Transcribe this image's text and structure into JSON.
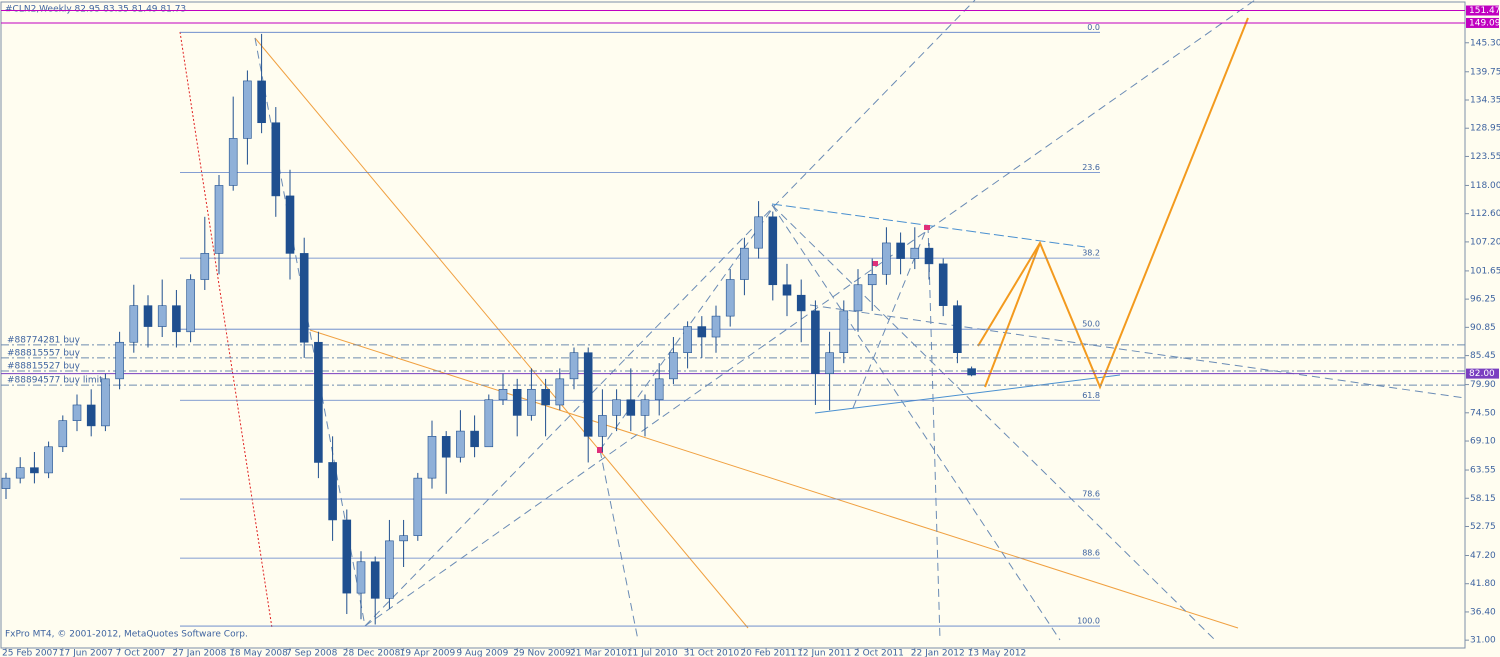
{
  "chart_data": {
    "type": "candlestick",
    "header": "#CLN2,Weekly  82.95 83.35 81.49 81.73",
    "copyright": "FxPro MT4, © 2001-2012, MetaQuotes Software Corp.",
    "categories": [
      "25 Feb 2007",
      null,
      null,
      null,
      "17 Jun 2007",
      null,
      null,
      null,
      "7 Oct 2007",
      null,
      null,
      null,
      "27 Jan 2008",
      null,
      null,
      null,
      "18 May 2008",
      null,
      null,
      null,
      "7 Sep 2008",
      null,
      null,
      null,
      "28 Dec 2008",
      null,
      null,
      null,
      "19 Apr 2009",
      null,
      null,
      null,
      "9 Aug 2009",
      null,
      null,
      null,
      "29 Nov 2009",
      null,
      null,
      null,
      "21 Mar 2010",
      null,
      null,
      null,
      "11 Jul 2010",
      null,
      null,
      null,
      "31 Oct 2010",
      null,
      null,
      null,
      "20 Feb 2011",
      null,
      null,
      null,
      "12 Jun 2011",
      null,
      null,
      null,
      "2 Oct 2011",
      null,
      null,
      null,
      "22 Jan 2012",
      null,
      null,
      null,
      "13 May 2012"
    ],
    "open": [
      60,
      62,
      64,
      63,
      68,
      73,
      76,
      72,
      81,
      88,
      95,
      91,
      95,
      90,
      100,
      105,
      118,
      127,
      138,
      130,
      116,
      105,
      88,
      65,
      54,
      40,
      46,
      39,
      50,
      51,
      62,
      70,
      66,
      71,
      68,
      77,
      79,
      74,
      79,
      76,
      81,
      86,
      70,
      74,
      77,
      74,
      77,
      81,
      86,
      91,
      89,
      93,
      100,
      106,
      112,
      99,
      97,
      94,
      82,
      86,
      94,
      99,
      101,
      107,
      104,
      106,
      103,
      95,
      82.95
    ],
    "high": [
      63,
      66,
      67,
      69,
      74,
      78,
      79,
      82,
      90,
      99,
      97,
      100,
      98,
      101,
      112,
      120,
      135,
      140,
      147,
      133,
      121,
      108,
      90,
      70,
      56,
      48,
      47,
      54,
      54,
      63,
      73,
      71,
      75,
      74,
      78,
      82,
      81,
      83,
      81,
      83,
      87,
      87,
      79,
      79,
      83,
      78,
      84,
      89,
      92,
      93,
      95,
      102,
      108,
      115,
      113,
      103,
      100,
      96,
      90,
      96,
      102,
      104,
      110,
      109,
      110,
      107,
      104,
      96,
      83.35
    ],
    "low": [
      58,
      61,
      61,
      62,
      67,
      71,
      70,
      71,
      79,
      86,
      87,
      89,
      87,
      88,
      98,
      101,
      117,
      122,
      128,
      112,
      100,
      85,
      62,
      50,
      36,
      35,
      34,
      37,
      45,
      50,
      60,
      59,
      65,
      66,
      68,
      76,
      70,
      73,
      70,
      75,
      79,
      65,
      67,
      71,
      71,
      70,
      74,
      80,
      83,
      85,
      86,
      91,
      97,
      104,
      96,
      93,
      88,
      76,
      75,
      84,
      90,
      94,
      99,
      101,
      102,
      100,
      93,
      84,
      81.49
    ],
    "close": [
      62,
      64,
      63,
      68,
      73,
      76,
      72,
      81,
      88,
      95,
      91,
      95,
      90,
      100,
      105,
      118,
      127,
      138,
      130,
      116,
      105,
      88,
      65,
      54,
      40,
      46,
      39,
      50,
      51,
      62,
      70,
      66,
      71,
      68,
      77,
      79,
      74,
      79,
      76,
      81,
      86,
      70,
      74,
      77,
      74,
      77,
      81,
      86,
      91,
      89,
      93,
      100,
      106,
      112,
      99,
      97,
      94,
      82,
      86,
      94,
      99,
      101,
      107,
      104,
      106,
      103,
      95,
      86,
      81.73
    ],
    "up_color": "#8fb0d8",
    "down_color": "#1f4f8f",
    "wick_color": "#1f4f8f",
    "ylim": [
      29.5,
      153.1
    ],
    "yticks": [
      {
        "value": 145.3,
        "label": "145.30"
      },
      {
        "value": 139.75,
        "label": "139.75"
      },
      {
        "value": 134.35,
        "label": "134.35"
      },
      {
        "value": 128.95,
        "label": "128.95"
      },
      {
        "value": 123.55,
        "label": "123.55"
      },
      {
        "value": 118,
        "label": "118.00"
      },
      {
        "value": 112.6,
        "label": "112.60"
      },
      {
        "value": 107.2,
        "label": "107.20"
      },
      {
        "value": 101.65,
        "label": "101.65"
      },
      {
        "value": 96.25,
        "label": "96.25"
      },
      {
        "value": 90.85,
        "label": "90.85"
      },
      {
        "value": 85.45,
        "label": "85.45"
      },
      {
        "value": 79.9,
        "label": "79.90"
      },
      {
        "value": 74.5,
        "label": "74.50"
      },
      {
        "value": 69.1,
        "label": "69.10"
      },
      {
        "value": 63.55,
        "label": "63.55"
      },
      {
        "value": 58.15,
        "label": "58.15"
      },
      {
        "value": 52.75,
        "label": "52.75"
      },
      {
        "value": 47.2,
        "label": "47.20"
      },
      {
        "value": 41.8,
        "label": "41.80"
      },
      {
        "value": 36.4,
        "label": "36.40"
      },
      {
        "value": 31,
        "label": "31.00"
      }
    ],
    "price_lines": [
      {
        "value": 151.47,
        "color": "#c000c0"
      },
      {
        "value": 149.09,
        "color": "#c000c0"
      },
      {
        "value": 82,
        "label": "82.00",
        "color": "#7a3fc0"
      }
    ],
    "fibonacci": [
      {
        "label": "0.0",
        "value": 147.3
      },
      {
        "label": "23.6",
        "value": 120.5
      },
      {
        "label": "38.2",
        "value": 104.1
      },
      {
        "label": "50.0",
        "value": 90.5
      },
      {
        "label": "61.8",
        "value": 76.9
      },
      {
        "label": "78.6",
        "value": 58.0
      },
      {
        "label": "88.6",
        "value": 46.7
      },
      {
        "label": "100.0",
        "value": 33.7
      }
    ],
    "orders": [
      {
        "label": "#88774281 buy",
        "value": 87.5
      },
      {
        "label": "#88815557 buy",
        "value": 85.0
      },
      {
        "label": "#88815527 buy",
        "value": 82.5
      },
      {
        "label": "#88894577 buy limit",
        "value": 79.8
      }
    ]
  }
}
